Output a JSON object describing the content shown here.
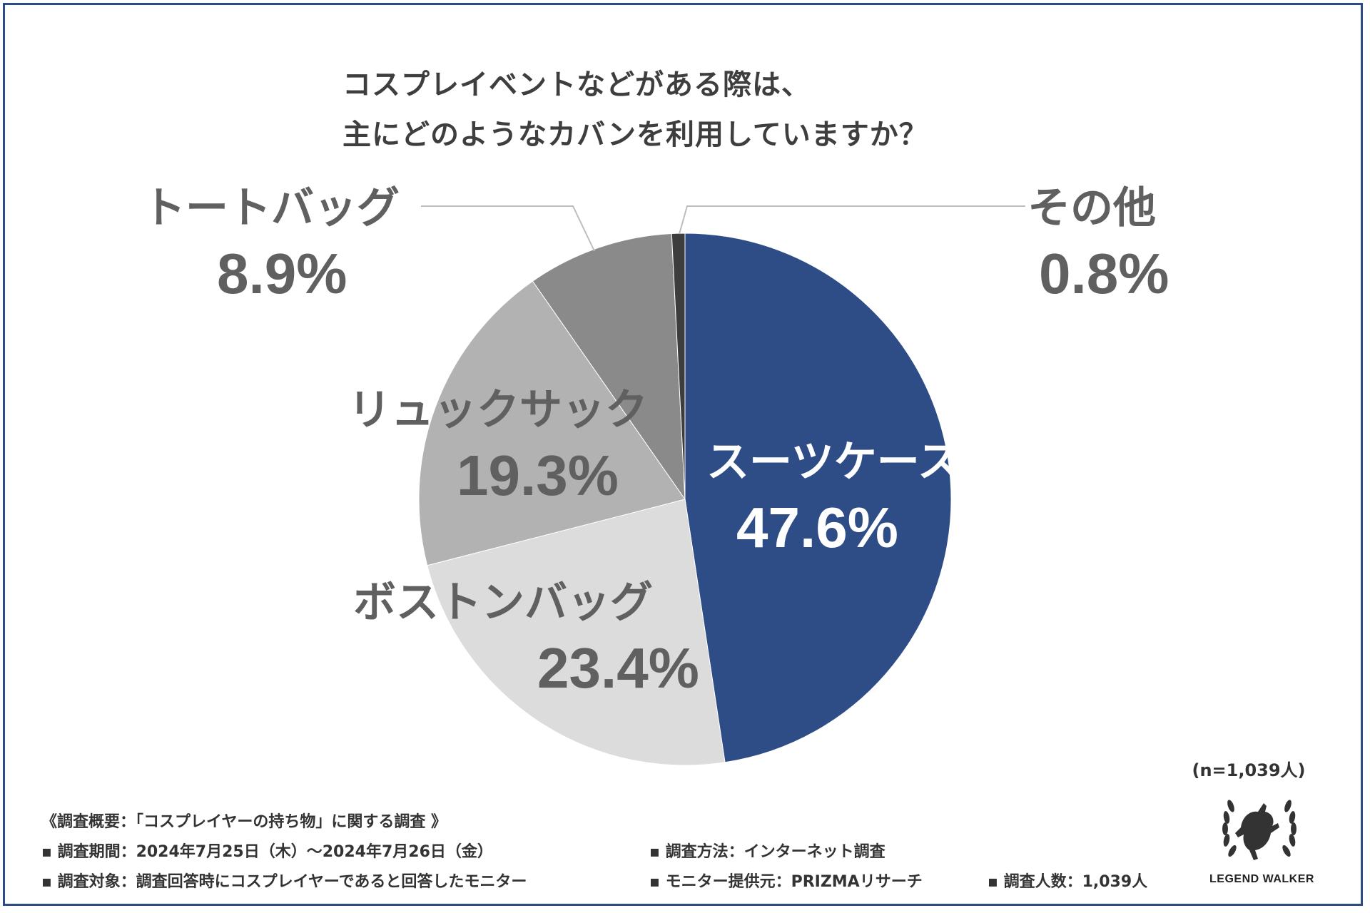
{
  "chart_data": {
    "type": "pie",
    "title_lines": [
      "コスプレイベントなどがある際は、",
      "主にどのようなカバンを利用していますか？"
    ],
    "slices": [
      {
        "label": "スーツケース",
        "value": 47.6,
        "value_label": "47.6%",
        "color": "#2e4d87"
      },
      {
        "label": "ボストンバッグ",
        "value": 23.4,
        "value_label": "23.4%",
        "color": "#dcdcdc"
      },
      {
        "label": "リュックサック",
        "value": 19.3,
        "value_label": "19.3%",
        "color": "#b2b2b2"
      },
      {
        "label": "トートバッグ",
        "value": 8.9,
        "value_label": "8.9%",
        "color": "#8a8a8a"
      },
      {
        "label": "その他",
        "value": 0.8,
        "value_label": "0.8%",
        "color": "#3d3d3d"
      }
    ],
    "start_angle": "top, clockwise"
  },
  "sample_size": "(n=1,039人)",
  "notes": {
    "header": "《調査概要：「コスプレイヤーの持ち物」に関する調査 》",
    "period": "▪ 調査期間：2024年7月25日（木）～2024年7月26日（金）",
    "method": "▪ 調査方法：インターネット調査",
    "target": "▪ 調査対象：調査回答時にコスプレイヤーであると回答したモニター",
    "provider": "▪ モニター提供元：PRIZMAリサーチ",
    "count": "▪ 調査人数：1,039人"
  },
  "logo": {
    "text": "LEGEND WALKER",
    "icon": "rearing-horse-laurel-icon"
  },
  "colors": {
    "border": "#2c4c86",
    "label_gray": "#606060",
    "label_white": "#ffffff",
    "leader_line": "#bdbdbd"
  }
}
